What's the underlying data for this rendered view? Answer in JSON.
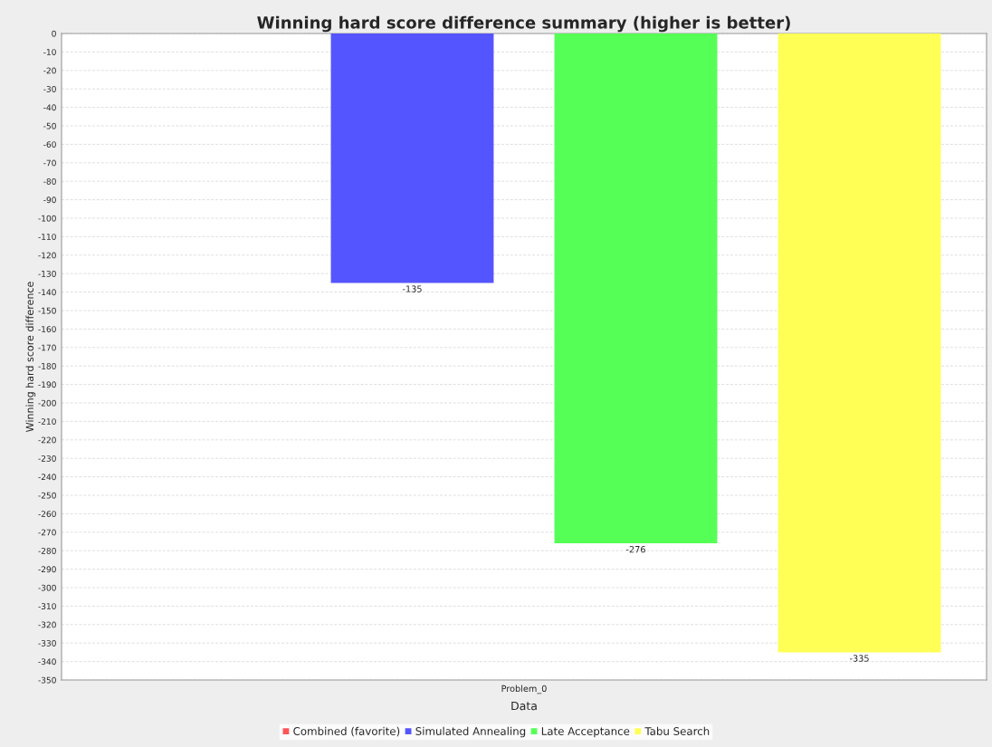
{
  "chart_data": {
    "type": "bar",
    "title": "Winning hard score difference summary (higher is better)",
    "xlabel": "Data",
    "ylabel": "Winning hard score difference",
    "categories": [
      "Problem_0"
    ],
    "series": [
      {
        "name": "Combined (favorite)",
        "color": "#ff5555",
        "values": [
          null
        ]
      },
      {
        "name": "Simulated Annealing",
        "color": "#5555ff",
        "values": [
          -135
        ]
      },
      {
        "name": "Late Acceptance",
        "color": "#55ff55",
        "values": [
          -276
        ]
      },
      {
        "name": "Tabu Search",
        "color": "#ffff55",
        "values": [
          -335
        ]
      }
    ],
    "ylim": [
      -350,
      0
    ],
    "yticks": [
      0,
      -10,
      -20,
      -30,
      -40,
      -50,
      -60,
      -70,
      -80,
      -90,
      -100,
      -110,
      -120,
      -130,
      -140,
      -150,
      -160,
      -170,
      -180,
      -190,
      -200,
      -210,
      -220,
      -230,
      -240,
      -250,
      -260,
      -270,
      -280,
      -290,
      -300,
      -310,
      -320,
      -330,
      -340,
      -350
    ],
    "grid": "y",
    "legend": "bottom",
    "data_labels": true
  }
}
